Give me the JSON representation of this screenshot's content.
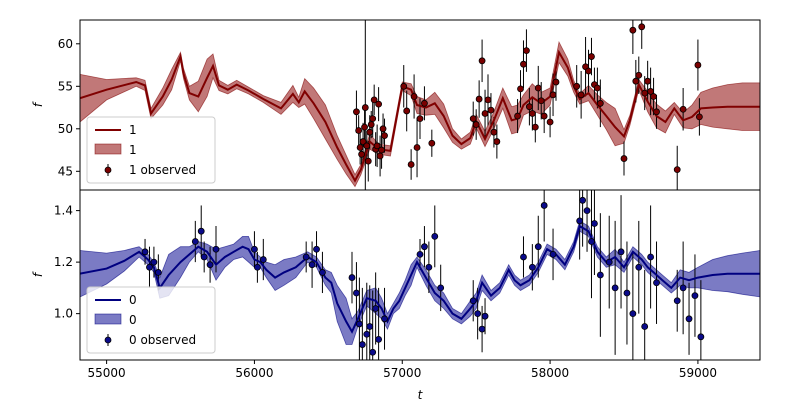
{
  "chart_data": [
    {
      "type": "line",
      "panel": "top",
      "xlabel": "",
      "ylabel": "f",
      "xlim": [
        54820,
        59420
      ],
      "ylim": [
        42.8,
        62.8
      ],
      "yticks": [
        45,
        50,
        55,
        60
      ],
      "xticks": [],
      "colors": {
        "line": "#800000",
        "band": "#b25656",
        "band_edge": "#800000",
        "points": "#7a0000"
      },
      "legend": {
        "position": "lower-left",
        "entries": [
          "1",
          "1",
          "1 observed"
        ]
      },
      "series": [
        {
          "name": "1",
          "kind": "prediction",
          "x": [
            54820,
            55000,
            55200,
            55260,
            55300,
            55380,
            55440,
            55500,
            55520,
            55560,
            55620,
            55680,
            55720,
            55760,
            55820,
            55880,
            55960,
            56060,
            56180,
            56260,
            56300,
            56340,
            56400,
            56480,
            56560,
            56620,
            56680,
            56720,
            56780,
            56840,
            56920,
            57000,
            57060,
            57100,
            57160,
            57220,
            57280,
            57340,
            57400,
            57460,
            57500,
            57560,
            57620,
            57680,
            57740,
            57780,
            57820,
            57880,
            57940,
            58000,
            58060,
            58120,
            58160,
            58200,
            58260,
            58320,
            58380,
            58440,
            58500,
            58540,
            58600,
            58660,
            58720,
            58780,
            58840,
            58900,
            58960,
            59020,
            59100,
            59200,
            59300,
            59420
          ],
          "y": [
            53.6,
            54.6,
            55.5,
            55.1,
            51.8,
            53.8,
            55.8,
            58.5,
            56.5,
            54.2,
            53.8,
            56.0,
            57.4,
            55.1,
            54.6,
            55.2,
            54.5,
            53.5,
            52.4,
            54.1,
            53.1,
            54.4,
            53.0,
            50.8,
            47.8,
            45.8,
            43.9,
            45.2,
            48.5,
            47.6,
            47.4,
            55.0,
            54.6,
            52.8,
            52.5,
            53.0,
            51.5,
            49.2,
            48.2,
            48.9,
            50.9,
            48.8,
            51.0,
            53.6,
            51.0,
            51.2,
            52.8,
            53.7,
            53.0,
            53.8,
            59.0,
            57.2,
            55.0,
            53.5,
            54.2,
            52.8,
            51.5,
            50.2,
            49.1,
            51.0,
            55.2,
            53.2,
            51.5,
            50.8,
            52.4,
            51.0,
            51.4,
            52.4,
            52.5,
            52.6,
            52.6,
            52.6
          ],
          "band_half_width": [
            2.8,
            1.2,
            0.5,
            0.6,
            0.6,
            1.0,
            1.2,
            0.5,
            0.6,
            0.8,
            1.8,
            2.2,
            1.4,
            0.6,
            0.5,
            0.5,
            0.4,
            0.4,
            0.7,
            1.0,
            0.6,
            1.5,
            1.8,
            2.0,
            1.4,
            1.1,
            0.7,
            0.6,
            0.9,
            0.6,
            0.6,
            0.5,
            0.7,
            1.0,
            0.9,
            1.3,
            1.4,
            0.8,
            0.6,
            0.7,
            0.8,
            0.9,
            1.0,
            1.2,
            1.6,
            1.6,
            1.2,
            1.6,
            1.3,
            1.0,
            1.2,
            1.0,
            0.7,
            0.6,
            0.9,
            1.2,
            1.6,
            2.2,
            0.8,
            0.6,
            0.6,
            1.2,
            1.4,
            1.3,
            0.7,
            0.9,
            1.4,
            1.9,
            2.3,
            2.6,
            2.8,
            2.8
          ]
        },
        {
          "name": "1 observed",
          "kind": "points",
          "x": [
            56690,
            56705,
            56715,
            56725,
            56735,
            56745,
            56750,
            56760,
            56770,
            56780,
            56790,
            56800,
            56810,
            56820,
            56830,
            56840,
            56850,
            56860,
            56870,
            56880,
            57010,
            57030,
            57060,
            57080,
            57100,
            57120,
            57150,
            57200,
            57480,
            57500,
            57520,
            57540,
            57560,
            57580,
            57600,
            57620,
            57640,
            57780,
            57800,
            57820,
            57840,
            57860,
            57880,
            57900,
            57920,
            57940,
            57960,
            58000,
            58020,
            58040,
            58180,
            58210,
            58240,
            58260,
            58280,
            58300,
            58320,
            58340,
            58500,
            58560,
            58580,
            58600,
            58620,
            58640,
            58660,
            58680,
            58700,
            58720,
            58860,
            58900,
            59000,
            59010
          ],
          "y": [
            52.0,
            49.8,
            47.8,
            47.0,
            48.5,
            50.2,
            52.5,
            48.0,
            46.2,
            49.6,
            50.5,
            51.2,
            53.4,
            47.6,
            48.0,
            52.9,
            46.8,
            47.5,
            50.0,
            49.2,
            55.0,
            52.1,
            45.8,
            53.8,
            47.8,
            51.2,
            53.0,
            48.3,
            51.2,
            50.5,
            53.5,
            58.0,
            51.8,
            53.4,
            52.2,
            49.6,
            48.5,
            51.5,
            54.7,
            57.6,
            59.2,
            52.6,
            51.8,
            50.2,
            54.8,
            53.3,
            51.5,
            50.8,
            54.0,
            55.5,
            55.0,
            54.0,
            57.3,
            56.8,
            58.5,
            55.2,
            54.8,
            53.0,
            46.5,
            61.6,
            55.6,
            56.3,
            62.0,
            54.2,
            55.6,
            54.4,
            53.8,
            52.0,
            45.2,
            52.3,
            57.5,
            51.4
          ],
          "err": [
            2.5,
            1.8,
            2.0,
            1.5,
            2.2,
            2.0,
            15.0,
            1.8,
            2.4,
            2.0,
            1.6,
            2.2,
            1.8,
            2.0,
            2.5,
            2.0,
            2.4,
            2.2,
            1.8,
            2.0,
            2.5,
            2.4,
            1.8,
            2.6,
            3.5,
            2.4,
            2.0,
            1.6,
            2.0,
            1.8,
            2.2,
            2.5,
            2.8,
            3.0,
            2.0,
            1.8,
            2.0,
            2.0,
            2.2,
            2.8,
            2.5,
            2.2,
            2.0,
            1.8,
            2.6,
            2.2,
            2.0,
            1.8,
            2.5,
            2.2,
            2.5,
            2.8,
            3.5,
            2.5,
            2.2,
            2.0,
            2.4,
            2.8,
            2.0,
            2.8,
            2.5,
            2.2,
            2.6,
            2.0,
            2.4,
            2.8,
            2.2,
            2.0,
            2.8,
            2.5,
            3.0,
            2.2
          ]
        }
      ]
    },
    {
      "type": "line",
      "panel": "bottom",
      "xlabel": "t",
      "ylabel": "f",
      "xlim": [
        54820,
        59420
      ],
      "ylim": [
        0.82,
        1.48
      ],
      "yticks": [
        1.0,
        1.2,
        1.4
      ],
      "xticks": [
        55000,
        56000,
        57000,
        58000,
        59000
      ],
      "colors": {
        "line": "#000080",
        "band": "#5a5ab5",
        "band_edge": "#000080",
        "points": "#0a0a8a"
      },
      "legend": {
        "position": "lower-left",
        "entries": [
          "0",
          "0",
          "0 observed"
        ]
      },
      "series": [
        {
          "name": "0",
          "kind": "prediction",
          "x": [
            54820,
            55000,
            55120,
            55220,
            55280,
            55320,
            55360,
            55420,
            55500,
            55560,
            55620,
            55680,
            55740,
            55800,
            55860,
            55920,
            55960,
            56000,
            56040,
            56080,
            56140,
            56200,
            56280,
            56360,
            56420,
            56480,
            56520,
            56560,
            56620,
            56660,
            56700,
            56760,
            56820,
            56860,
            56900,
            56940,
            56980,
            57020,
            57060,
            57100,
            57160,
            57220,
            57280,
            57340,
            57400,
            57460,
            57500,
            57540,
            57600,
            57660,
            57720,
            57760,
            57800,
            57860,
            57920,
            57980,
            58040,
            58100,
            58160,
            58200,
            58260,
            58320,
            58380,
            58440,
            58500,
            58560,
            58620,
            58660,
            58700,
            58760,
            58820,
            58880,
            58940,
            59000,
            59100,
            59200,
            59300,
            59420
          ],
          "y": [
            1.155,
            1.175,
            1.205,
            1.24,
            1.21,
            1.18,
            1.1,
            1.15,
            1.2,
            1.23,
            1.26,
            1.24,
            1.19,
            1.22,
            1.24,
            1.26,
            1.25,
            1.21,
            1.2,
            1.17,
            1.14,
            1.16,
            1.18,
            1.22,
            1.2,
            1.14,
            1.12,
            1.04,
            0.97,
            0.93,
            0.98,
            1.06,
            1.05,
            1.02,
            0.97,
            1.02,
            1.05,
            1.1,
            1.15,
            1.2,
            1.14,
            1.08,
            1.05,
            1.0,
            0.98,
            1.02,
            1.05,
            1.12,
            1.07,
            1.1,
            1.17,
            1.13,
            1.11,
            1.13,
            1.18,
            1.25,
            1.23,
            1.19,
            1.26,
            1.34,
            1.32,
            1.24,
            1.2,
            1.22,
            1.18,
            1.24,
            1.21,
            1.18,
            1.16,
            1.13,
            1.1,
            1.14,
            1.13,
            1.14,
            1.15,
            1.155,
            1.155,
            1.155
          ],
          "band_half_width": [
            0.09,
            0.06,
            0.04,
            0.02,
            0.02,
            0.02,
            0.04,
            0.08,
            0.06,
            0.03,
            0.02,
            0.03,
            0.06,
            0.04,
            0.03,
            0.04,
            0.05,
            0.03,
            0.02,
            0.03,
            0.05,
            0.05,
            0.04,
            0.02,
            0.02,
            0.03,
            0.04,
            0.07,
            0.09,
            0.05,
            0.03,
            0.03,
            0.05,
            0.04,
            0.03,
            0.02,
            0.03,
            0.03,
            0.04,
            0.02,
            0.03,
            0.03,
            0.03,
            0.02,
            0.02,
            0.03,
            0.03,
            0.03,
            0.02,
            0.02,
            0.02,
            0.02,
            0.02,
            0.02,
            0.02,
            0.02,
            0.02,
            0.02,
            0.02,
            0.02,
            0.02,
            0.02,
            0.02,
            0.03,
            0.02,
            0.02,
            0.02,
            0.02,
            0.02,
            0.02,
            0.02,
            0.03,
            0.03,
            0.04,
            0.06,
            0.07,
            0.08,
            0.09
          ]
        },
        {
          "name": "0 observed",
          "kind": "points",
          "x": [
            55260,
            55290,
            55320,
            55350,
            55600,
            55640,
            55660,
            55700,
            55740,
            56000,
            56020,
            56060,
            56350,
            56390,
            56420,
            56460,
            56660,
            56690,
            56710,
            56730,
            56760,
            56780,
            56800,
            56820,
            56840,
            56880,
            57120,
            57150,
            57180,
            57220,
            57260,
            57480,
            57510,
            57540,
            57560,
            57820,
            57880,
            57920,
            57960,
            58020,
            58200,
            58220,
            58250,
            58280,
            58300,
            58340,
            58400,
            58440,
            58480,
            58520,
            58560,
            58600,
            58640,
            58680,
            58720,
            58860,
            58900,
            58940,
            58980,
            59020
          ],
          "y": [
            1.24,
            1.18,
            1.2,
            1.16,
            1.28,
            1.32,
            1.22,
            1.19,
            1.25,
            1.25,
            1.18,
            1.21,
            1.22,
            1.19,
            1.25,
            1.16,
            1.14,
            1.08,
            0.96,
            0.88,
            0.92,
            0.95,
            0.85,
            1.02,
            0.9,
            0.98,
            1.23,
            1.26,
            1.18,
            1.3,
            1.1,
            1.05,
            1.0,
            0.94,
            0.99,
            1.22,
            1.18,
            1.26,
            1.42,
            1.23,
            1.36,
            1.44,
            1.4,
            1.28,
            1.35,
            1.15,
            1.2,
            1.1,
            1.24,
            1.08,
            1.0,
            1.18,
            0.95,
            1.22,
            1.12,
            1.05,
            1.1,
            0.98,
            1.07,
            0.91
          ],
          "err": [
            0.05,
            0.08,
            0.06,
            0.07,
            0.08,
            0.1,
            0.06,
            0.07,
            0.09,
            0.07,
            0.06,
            0.08,
            0.06,
            0.09,
            0.07,
            0.08,
            0.1,
            0.12,
            0.18,
            0.22,
            0.2,
            0.16,
            0.24,
            0.14,
            0.2,
            0.12,
            0.06,
            0.08,
            0.1,
            0.12,
            0.09,
            0.08,
            0.1,
            0.09,
            0.07,
            0.08,
            0.09,
            0.12,
            0.14,
            0.1,
            0.15,
            0.18,
            0.16,
            0.22,
            0.2,
            0.24,
            0.18,
            0.26,
            0.22,
            0.2,
            0.24,
            0.18,
            0.22,
            0.2,
            0.16,
            0.12,
            0.18,
            0.14,
            0.16,
            0.22
          ]
        }
      ]
    }
  ]
}
